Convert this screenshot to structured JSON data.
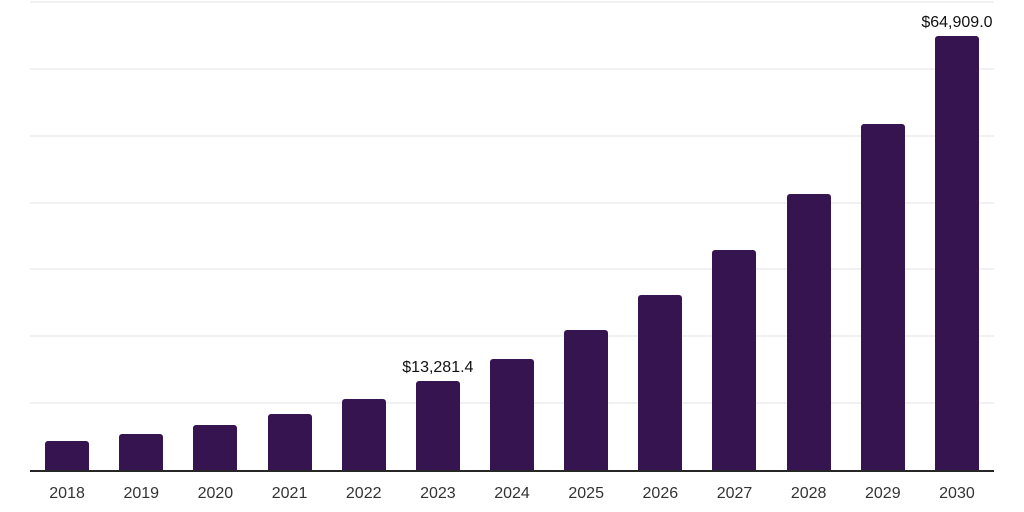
{
  "chart_data": {
    "type": "bar",
    "title": "",
    "xlabel": "",
    "ylabel": "",
    "categories": [
      "2018",
      "2019",
      "2020",
      "2021",
      "2022",
      "2023",
      "2024",
      "2025",
      "2026",
      "2027",
      "2028",
      "2029",
      "2030"
    ],
    "values": [
      4274,
      5362,
      6727,
      8439,
      10587,
      13281.4,
      16661,
      20901,
      26220,
      32893,
      41264,
      51766,
      64909.0
    ],
    "value_labels": {
      "2023": "$13,281.4",
      "2030": "$64,909.0"
    },
    "ylim": [
      0,
      70000
    ],
    "gridline_step": 10000,
    "grid": true,
    "legend": "none",
    "y_axis_tick_labels_visible": false,
    "colors": {
      "bar": "#361450",
      "axis": "#262626",
      "gridline": "#f1f1f3",
      "tick_label": "#333333",
      "value_label": "#111111",
      "background": "#ffffff"
    }
  }
}
